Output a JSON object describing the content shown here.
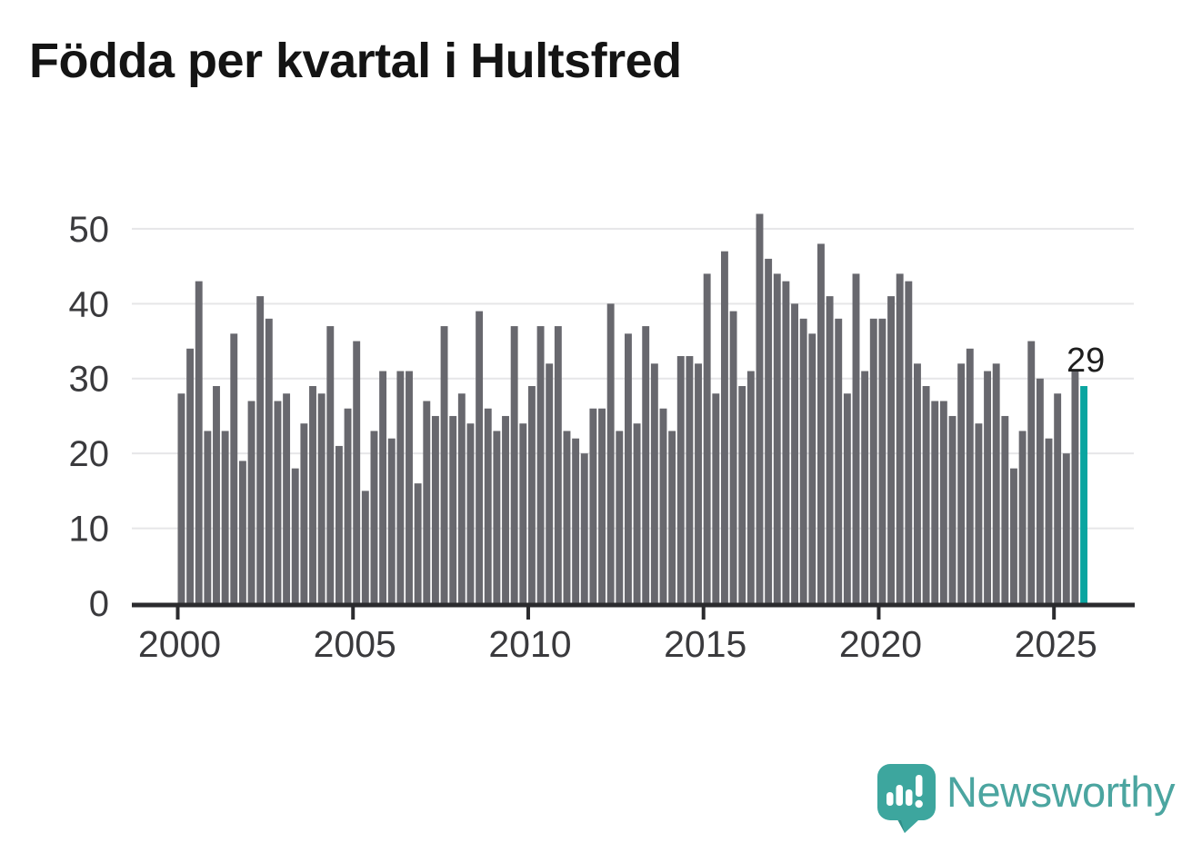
{
  "chart_data": {
    "type": "bar",
    "title": "Födda per kvartal i Hultsfred",
    "frequency": "quarterly",
    "x_start_year": 2000,
    "x_tick_labels": [
      "2000",
      "2005",
      "2010",
      "2015",
      "2020",
      "2025"
    ],
    "y_ticks": [
      0,
      10,
      20,
      30,
      40,
      50
    ],
    "ylim": [
      0,
      52
    ],
    "grid": true,
    "legend": "none",
    "series": [
      {
        "name": "Födda per kvartal",
        "values": [
          28,
          34,
          43,
          23,
          29,
          23,
          36,
          19,
          27,
          41,
          38,
          27,
          28,
          18,
          24,
          29,
          28,
          37,
          21,
          26,
          35,
          15,
          23,
          31,
          22,
          31,
          31,
          16,
          27,
          25,
          37,
          25,
          28,
          24,
          39,
          26,
          23,
          25,
          37,
          24,
          29,
          37,
          32,
          37,
          23,
          22,
          20,
          26,
          26,
          40,
          23,
          36,
          24,
          37,
          32,
          26,
          23,
          33,
          33,
          32,
          44,
          28,
          47,
          39,
          29,
          31,
          52,
          46,
          44,
          43,
          40,
          38,
          36,
          48,
          41,
          38,
          28,
          44,
          31,
          38,
          38,
          41,
          44,
          43,
          32,
          29,
          27,
          27,
          25,
          32,
          34,
          24,
          31,
          32,
          25,
          18,
          23,
          35,
          30,
          22,
          28,
          20,
          31,
          29
        ]
      }
    ],
    "highlight": {
      "index": 103,
      "period": "2025 Q4",
      "value": 29,
      "data_label": "29"
    },
    "colors": {
      "bar": "#68686e",
      "highlight": "#0aa5a0",
      "grid": "#e6e6e8",
      "axis": "#2b2b2e",
      "tick_label": "#3a3a3d",
      "title": "#141414",
      "value_label": "#1e1e1e"
    }
  },
  "brand": {
    "name": "Newsworthy",
    "wordmark_color": "#4ba5a0",
    "icon": "newsworthy-logo",
    "icon_color": "#3da69e",
    "icon_shade_color": "#2f8e88"
  }
}
